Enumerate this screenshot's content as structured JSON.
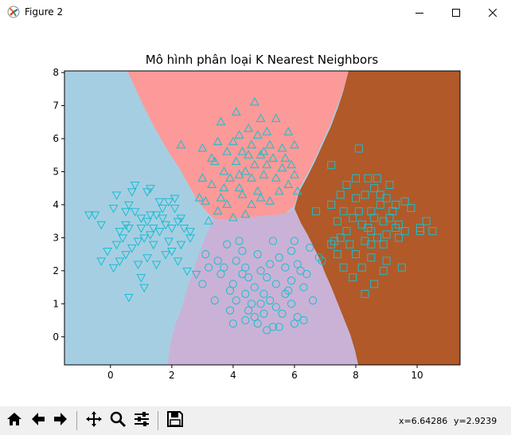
{
  "window": {
    "title": "Figure 2",
    "icons": {
      "app": "matplotlib-icon",
      "minimize": "minimize-icon",
      "maximize": "maximize-icon",
      "close": "close-icon"
    }
  },
  "toolbar": {
    "buttons": [
      "home-icon",
      "back-icon",
      "forward-icon",
      "pan-icon",
      "zoom-icon",
      "configure-subplots-icon",
      "save-icon"
    ],
    "coord_x": "x=6.64286",
    "coord_y": "y=2.9239"
  },
  "chart_data": {
    "type": "scatter",
    "title": "Mô hình phân loại K Nearest Neighbors",
    "xlabel": "",
    "ylabel": "",
    "xlim": [
      -1.5,
      11.4
    ],
    "ylim": [
      -0.85,
      8.05
    ],
    "xticks": [
      "0",
      "2",
      "4",
      "6",
      "8",
      "10"
    ],
    "yticks": [
      "0",
      "1",
      "2",
      "3",
      "4",
      "5",
      "6",
      "7",
      "8"
    ],
    "region_colors": [
      "#a6cee3",
      "#fb9a99",
      "#cab2d6",
      "#b15928"
    ],
    "marker_color": "#17becf",
    "series": [
      {
        "marker": "triangle-down",
        "points": [
          [
            0.8,
            4.6
          ],
          [
            1.3,
            4.5
          ],
          [
            1.2,
            4.4
          ],
          [
            0.7,
            4.4
          ],
          [
            0.2,
            4.3
          ],
          [
            -0.5,
            3.7
          ],
          [
            -0.3,
            3.4
          ],
          [
            -0.7,
            3.7
          ],
          [
            0.1,
            3.9
          ],
          [
            0.5,
            3.8
          ],
          [
            0.6,
            4.0
          ],
          [
            0.8,
            3.8
          ],
          [
            1.0,
            3.6
          ],
          [
            1.2,
            3.5
          ],
          [
            1.4,
            3.3
          ],
          [
            1.6,
            3.2
          ],
          [
            1.8,
            3.4
          ],
          [
            2.0,
            3.3
          ],
          [
            2.2,
            3.5
          ],
          [
            2.4,
            3.3
          ],
          [
            2.6,
            3.2
          ],
          [
            2.3,
            3.6
          ],
          [
            2.1,
            3.9
          ],
          [
            1.9,
            4.1
          ],
          [
            1.7,
            3.9
          ],
          [
            1.5,
            3.7
          ],
          [
            1.3,
            3.1
          ],
          [
            1.1,
            3.0
          ],
          [
            0.9,
            2.9
          ],
          [
            0.7,
            2.7
          ],
          [
            0.5,
            2.5
          ],
          [
            0.3,
            2.3
          ],
          [
            0.1,
            2.1
          ],
          [
            -0.3,
            2.3
          ],
          [
            -0.1,
            2.6
          ],
          [
            0.3,
            3.2
          ],
          [
            0.6,
            3.3
          ],
          [
            1.2,
            2.4
          ],
          [
            1.5,
            2.2
          ],
          [
            1.8,
            2.5
          ],
          [
            2.0,
            2.6
          ],
          [
            2.2,
            2.3
          ],
          [
            2.5,
            2.0
          ],
          [
            1.1,
            1.5
          ],
          [
            0.6,
            1.2
          ],
          [
            2.8,
            1.9
          ],
          [
            2.1,
            4.2
          ],
          [
            1.6,
            4.1
          ],
          [
            0.4,
            3.0
          ],
          [
            1.0,
            3.3
          ],
          [
            1.9,
            2.9
          ],
          [
            2.6,
            3.0
          ],
          [
            0.9,
            2.2
          ],
          [
            1.4,
            2.8
          ],
          [
            0.2,
            2.8
          ],
          [
            1.7,
            3.6
          ],
          [
            0.5,
            3.4
          ],
          [
            1.3,
            3.7
          ],
          [
            2.3,
            2.8
          ],
          [
            1.0,
            1.8
          ]
        ]
      },
      {
        "marker": "triangle-up",
        "points": [
          [
            4.7,
            7.1
          ],
          [
            4.1,
            6.8
          ],
          [
            4.9,
            6.6
          ],
          [
            5.4,
            6.6
          ],
          [
            3.6,
            6.5
          ],
          [
            4.5,
            6.3
          ],
          [
            5.1,
            6.2
          ],
          [
            5.8,
            6.2
          ],
          [
            4.2,
            6.1
          ],
          [
            4.8,
            6.1
          ],
          [
            3.5,
            5.9
          ],
          [
            4.0,
            5.9
          ],
          [
            4.6,
            5.8
          ],
          [
            5.2,
            5.8
          ],
          [
            5.6,
            5.7
          ],
          [
            6.0,
            5.8
          ],
          [
            2.3,
            5.8
          ],
          [
            3.0,
            5.7
          ],
          [
            3.8,
            5.6
          ],
          [
            4.3,
            5.6
          ],
          [
            4.9,
            5.5
          ],
          [
            5.3,
            5.4
          ],
          [
            5.7,
            5.4
          ],
          [
            3.4,
            5.3
          ],
          [
            4.1,
            5.3
          ],
          [
            4.7,
            5.2
          ],
          [
            5.1,
            5.2
          ],
          [
            5.6,
            5.1
          ],
          [
            3.7,
            5.0
          ],
          [
            4.4,
            5.0
          ],
          [
            5.0,
            4.9
          ],
          [
            3.9,
            4.8
          ],
          [
            4.6,
            4.8
          ],
          [
            5.4,
            4.8
          ],
          [
            6.0,
            4.9
          ],
          [
            3.3,
            4.6
          ],
          [
            4.2,
            4.5
          ],
          [
            4.8,
            4.4
          ],
          [
            5.5,
            4.4
          ],
          [
            2.9,
            4.2
          ],
          [
            3.6,
            4.2
          ],
          [
            4.3,
            4.3
          ],
          [
            4.9,
            4.2
          ],
          [
            3.1,
            4.1
          ],
          [
            3.8,
            4.0
          ],
          [
            4.6,
            4.0
          ],
          [
            5.2,
            4.1
          ],
          [
            6.1,
            4.4
          ],
          [
            3.5,
            3.8
          ],
          [
            4.4,
            3.7
          ],
          [
            3.2,
            3.5
          ],
          [
            4.0,
            3.6
          ],
          [
            5.8,
            4.6
          ],
          [
            3.0,
            4.8
          ],
          [
            4.5,
            5.5
          ],
          [
            3.7,
            4.5
          ],
          [
            5.0,
            5.6
          ],
          [
            4.2,
            4.9
          ],
          [
            3.3,
            5.4
          ],
          [
            5.9,
            5.2
          ]
        ]
      },
      {
        "marker": "circle",
        "points": [
          [
            3.8,
            2.8
          ],
          [
            4.3,
            2.6
          ],
          [
            5.3,
            2.9
          ],
          [
            5.9,
            2.6
          ],
          [
            6.5,
            2.7
          ],
          [
            3.5,
            2.3
          ],
          [
            4.1,
            2.3
          ],
          [
            4.8,
            2.5
          ],
          [
            5.5,
            2.4
          ],
          [
            6.1,
            2.2
          ],
          [
            6.8,
            2.4
          ],
          [
            3.2,
            2.1
          ],
          [
            3.7,
            2.1
          ],
          [
            4.4,
            2.1
          ],
          [
            4.9,
            2.0
          ],
          [
            5.7,
            2.1
          ],
          [
            6.2,
            2.0
          ],
          [
            3.6,
            1.9
          ],
          [
            4.5,
            1.8
          ],
          [
            5.1,
            1.8
          ],
          [
            5.9,
            1.7
          ],
          [
            4.0,
            1.6
          ],
          [
            4.7,
            1.5
          ],
          [
            5.4,
            1.6
          ],
          [
            6.3,
            1.5
          ],
          [
            3.9,
            1.4
          ],
          [
            4.4,
            1.3
          ],
          [
            5.0,
            1.3
          ],
          [
            5.7,
            1.3
          ],
          [
            3.4,
            1.1
          ],
          [
            4.1,
            1.1
          ],
          [
            4.6,
            1.0
          ],
          [
            5.2,
            1.1
          ],
          [
            5.9,
            1.0
          ],
          [
            6.6,
            1.1
          ],
          [
            3.9,
            0.8
          ],
          [
            4.5,
            0.8
          ],
          [
            5.0,
            0.7
          ],
          [
            5.6,
            0.7
          ],
          [
            6.1,
            0.6
          ],
          [
            4.0,
            0.4
          ],
          [
            4.8,
            0.4
          ],
          [
            5.3,
            0.3
          ],
          [
            6.0,
            0.4
          ],
          [
            6.3,
            0.5
          ],
          [
            5.1,
            0.2
          ],
          [
            4.4,
            0.5
          ],
          [
            5.5,
            0.3
          ],
          [
            4.7,
            0.6
          ],
          [
            3.0,
            1.6
          ],
          [
            6.4,
            1.9
          ],
          [
            5.2,
            2.2
          ],
          [
            4.3,
            1.9
          ],
          [
            5.8,
            1.4
          ],
          [
            4.9,
            1.0
          ],
          [
            5.4,
            0.9
          ],
          [
            4.2,
            2.9
          ],
          [
            6.0,
            2.9
          ],
          [
            6.9,
            2.3
          ],
          [
            3.1,
            2.5
          ]
        ]
      },
      {
        "marker": "square",
        "points": [
          [
            8.1,
            5.7
          ],
          [
            7.2,
            5.2
          ],
          [
            8.0,
            4.8
          ],
          [
            8.4,
            4.8
          ],
          [
            8.7,
            4.8
          ],
          [
            9.1,
            4.6
          ],
          [
            8.6,
            4.5
          ],
          [
            8.3,
            4.3
          ],
          [
            7.5,
            4.3
          ],
          [
            9.0,
            4.2
          ],
          [
            8.8,
            4.0
          ],
          [
            9.3,
            4.0
          ],
          [
            9.8,
            3.9
          ],
          [
            8.5,
            3.8
          ],
          [
            8.1,
            3.8
          ],
          [
            7.6,
            3.8
          ],
          [
            7.9,
            3.6
          ],
          [
            8.6,
            3.6
          ],
          [
            9.1,
            3.6
          ],
          [
            6.7,
            3.8
          ],
          [
            7.4,
            3.5
          ],
          [
            8.2,
            3.4
          ],
          [
            8.9,
            3.5
          ],
          [
            9.4,
            3.4
          ],
          [
            10.3,
            3.5
          ],
          [
            7.7,
            3.2
          ],
          [
            8.5,
            3.2
          ],
          [
            9.0,
            3.1
          ],
          [
            9.6,
            3.2
          ],
          [
            10.1,
            3.2
          ],
          [
            10.5,
            3.2
          ],
          [
            7.3,
            2.9
          ],
          [
            7.8,
            2.8
          ],
          [
            8.3,
            2.9
          ],
          [
            8.9,
            2.8
          ],
          [
            9.4,
            3.0
          ],
          [
            7.4,
            2.5
          ],
          [
            8.0,
            2.5
          ],
          [
            8.5,
            2.4
          ],
          [
            9.0,
            2.3
          ],
          [
            7.6,
            2.1
          ],
          [
            8.2,
            2.1
          ],
          [
            8.9,
            2.0
          ],
          [
            9.5,
            2.1
          ],
          [
            7.9,
            1.8
          ],
          [
            8.6,
            1.6
          ],
          [
            8.3,
            1.3
          ],
          [
            7.2,
            2.8
          ],
          [
            8.7,
            3.0
          ],
          [
            9.2,
            3.8
          ],
          [
            7.5,
            3.0
          ],
          [
            8.0,
            4.2
          ],
          [
            9.6,
            4.1
          ],
          [
            8.8,
            4.3
          ],
          [
            7.7,
            4.6
          ],
          [
            8.4,
            3.3
          ],
          [
            9.3,
            3.3
          ],
          [
            10.1,
            3.3
          ],
          [
            8.5,
            2.8
          ],
          [
            7.2,
            4.0
          ]
        ]
      }
    ]
  }
}
